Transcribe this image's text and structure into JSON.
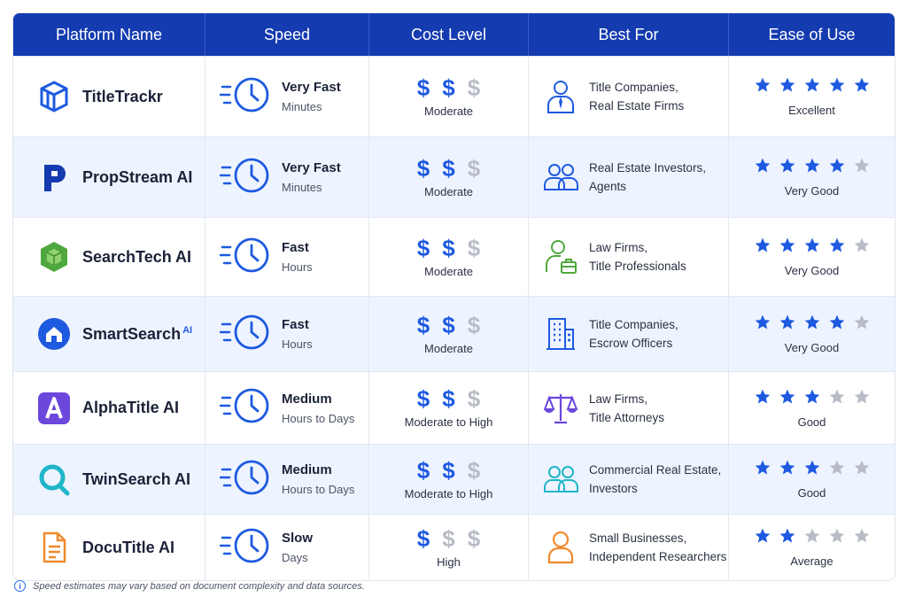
{
  "headers": [
    "Platform Name",
    "Speed",
    "Cost Level",
    "Best For",
    "Ease of Use"
  ],
  "rows": [
    {
      "name": "TitleTrackr",
      "sup": "",
      "logo_icon": "cube-logo-icon",
      "speed": "Very Fast",
      "speed_detail": "Minutes",
      "cost_filled": 2,
      "cost": "Moderate",
      "best_icon": "person-tie-icon",
      "best_line1": "Title Companies,",
      "best_line2": "Real Estate Firms",
      "stars": 5,
      "rating": "Excellent"
    },
    {
      "name": "PropStream AI",
      "sup": "",
      "logo_icon": "p-letter-logo-icon",
      "speed": "Very Fast",
      "speed_detail": "Minutes",
      "cost_filled": 2,
      "cost": "Moderate",
      "best_icon": "two-people-icon",
      "best_line1": "Real Estate Investors,",
      "best_line2": "Agents",
      "stars": 4,
      "rating": "Very Good"
    },
    {
      "name": "SearchTech AI",
      "sup": "",
      "logo_icon": "green-hexagon-cube-logo-icon",
      "speed": "Fast",
      "speed_detail": "Hours",
      "cost_filled": 2,
      "cost": "Moderate",
      "best_icon": "person-briefcase-icon",
      "best_line1": "Law Firms,",
      "best_line2": "Title Professionals",
      "stars": 4,
      "rating": "Very Good"
    },
    {
      "name": "SmartSearch",
      "sup": "AI",
      "logo_icon": "house-circle-logo-icon",
      "speed": "Fast",
      "speed_detail": "Hours",
      "cost_filled": 2,
      "cost": "Moderate",
      "best_icon": "office-building-icon",
      "best_line1": "Title Companies,",
      "best_line2": "Escrow Officers",
      "stars": 4,
      "rating": "Very Good"
    },
    {
      "name": "AlphaTitle AI",
      "sup": "",
      "logo_icon": "a-letter-logo-icon",
      "speed": "Medium",
      "speed_detail": "Hours to Days",
      "cost_filled": 2,
      "cost": "Moderate to High",
      "best_icon": "scales-of-justice-icon",
      "best_line1": "Law Firms,",
      "best_line2": "Title Attorneys",
      "stars": 3,
      "rating": "Good"
    },
    {
      "name": "TwinSearch AI",
      "sup": "",
      "logo_icon": "magnifier-logo-icon",
      "speed": "Medium",
      "speed_detail": "Hours to Days",
      "cost_filled": 2,
      "cost": "Moderate to High",
      "best_icon": "two-people-icon",
      "best_line1": "Commercial Real Estate,",
      "best_line2": "Investors",
      "stars": 3,
      "rating": "Good"
    },
    {
      "name": "DocuTitle AI",
      "sup": "",
      "logo_icon": "document-logo-icon",
      "speed": "Slow",
      "speed_detail": "Days",
      "cost_filled": 1,
      "cost": "High",
      "best_icon": "person-icon",
      "best_line1": "Small Businesses,",
      "best_line2": "Independent Researchers",
      "stars": 2,
      "rating": "Average"
    }
  ],
  "footnote": "Speed estimates may vary based on document complexity and data sources.",
  "colors": {
    "header": "#143bb0",
    "accent": "#1e5ae0",
    "muted": "#b7bcc6",
    "alt_row": "#eef4ff"
  }
}
